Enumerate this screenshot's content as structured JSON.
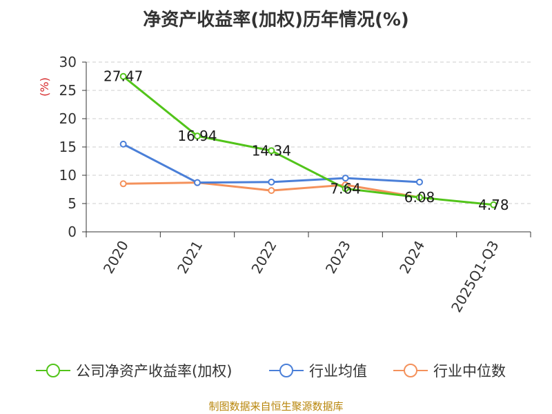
{
  "chart_data": {
    "type": "line",
    "title": "净资产收益率(加权)历年情况(%)",
    "ylabel": "(%)",
    "xlabel": "",
    "categories": [
      "2020",
      "2021",
      "2022",
      "2023",
      "2024",
      "2025Q1-Q3"
    ],
    "ylim": [
      0,
      30
    ],
    "yticks": [
      0,
      5,
      10,
      15,
      20,
      25,
      30
    ],
    "grid": true,
    "legend_position": "bottom",
    "series": [
      {
        "name": "公司净资产收益率(加权)",
        "color": "#52c41a",
        "values": [
          27.47,
          16.94,
          14.34,
          7.64,
          6.08,
          4.78
        ],
        "data_labels": [
          "27.47",
          "16.94",
          "14.34",
          "7.64",
          "6.08",
          "4.78"
        ]
      },
      {
        "name": "行业均值",
        "color": "#4a7fd8",
        "values": [
          15.5,
          8.7,
          8.8,
          9.5,
          8.8,
          null
        ]
      },
      {
        "name": "行业中位数",
        "color": "#f4915b",
        "values": [
          8.5,
          8.7,
          7.3,
          8.3,
          6.1,
          null
        ]
      }
    ]
  },
  "source": "制图数据来自恒生聚源数据库"
}
